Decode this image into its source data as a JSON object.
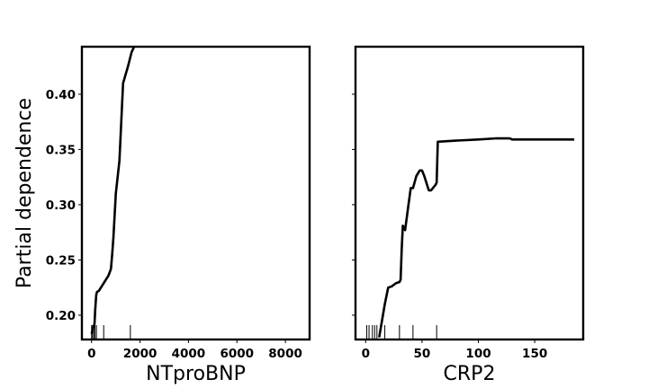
{
  "chart_data": [
    {
      "type": "line",
      "xlabel": "NTproBNP",
      "ylabel": "Partial dependence",
      "xlim": [
        -400,
        9000
      ],
      "ylim": [
        0.178,
        0.443
      ],
      "xticks": [
        0,
        2000,
        4000,
        6000,
        8000
      ],
      "xtick_labels": [
        "0",
        "2000",
        "4000",
        "6000",
        "8000"
      ],
      "yticks": [
        0.2,
        0.25,
        0.3,
        0.35,
        0.4
      ],
      "ytick_labels": [
        "0.20",
        "0.25",
        "0.30",
        "0.35",
        "0.40"
      ],
      "series": [
        {
          "x": [
            0,
            60,
            120,
            150,
            190,
            220,
            300,
            500,
            700,
            800,
            850,
            900,
            1000,
            1150,
            1300,
            1500,
            1650,
            1800
          ],
          "y": [
            0.183,
            0.188,
            0.192,
            0.205,
            0.218,
            0.221,
            0.222,
            0.229,
            0.236,
            0.242,
            0.255,
            0.27,
            0.31,
            0.34,
            0.41,
            0.425,
            0.438,
            0.445
          ]
        }
      ],
      "rug": [
        0,
        40,
        90,
        140,
        200,
        500,
        1600
      ],
      "grid": false
    },
    {
      "type": "line",
      "xlabel": "CRP2",
      "ylabel": "",
      "xlim": [
        -9,
        193
      ],
      "ylim": [
        0.178,
        0.443
      ],
      "xticks": [
        0,
        50,
        100,
        150
      ],
      "xtick_labels": [
        "0",
        "50",
        "100",
        "150"
      ],
      "yticks": [
        0.2,
        0.25,
        0.3,
        0.35,
        0.4
      ],
      "ytick_labels": [],
      "series": [
        {
          "x": [
            12,
            14,
            17,
            20,
            23,
            27,
            30,
            31,
            32,
            33,
            35,
            38,
            40,
            42,
            45,
            48,
            50,
            52,
            56,
            58,
            62,
            63,
            64,
            80,
            100,
            115,
            128,
            130,
            185
          ],
          "y": [
            0.18,
            0.192,
            0.21,
            0.225,
            0.226,
            0.229,
            0.23,
            0.232,
            0.26,
            0.281,
            0.277,
            0.3,
            0.315,
            0.315,
            0.326,
            0.331,
            0.331,
            0.326,
            0.313,
            0.313,
            0.318,
            0.32,
            0.357,
            0.358,
            0.359,
            0.36,
            0.36,
            0.359,
            0.359
          ]
        }
      ],
      "rug": [
        1,
        3,
        6,
        8,
        10,
        17,
        30,
        42,
        63
      ],
      "grid": false
    }
  ]
}
